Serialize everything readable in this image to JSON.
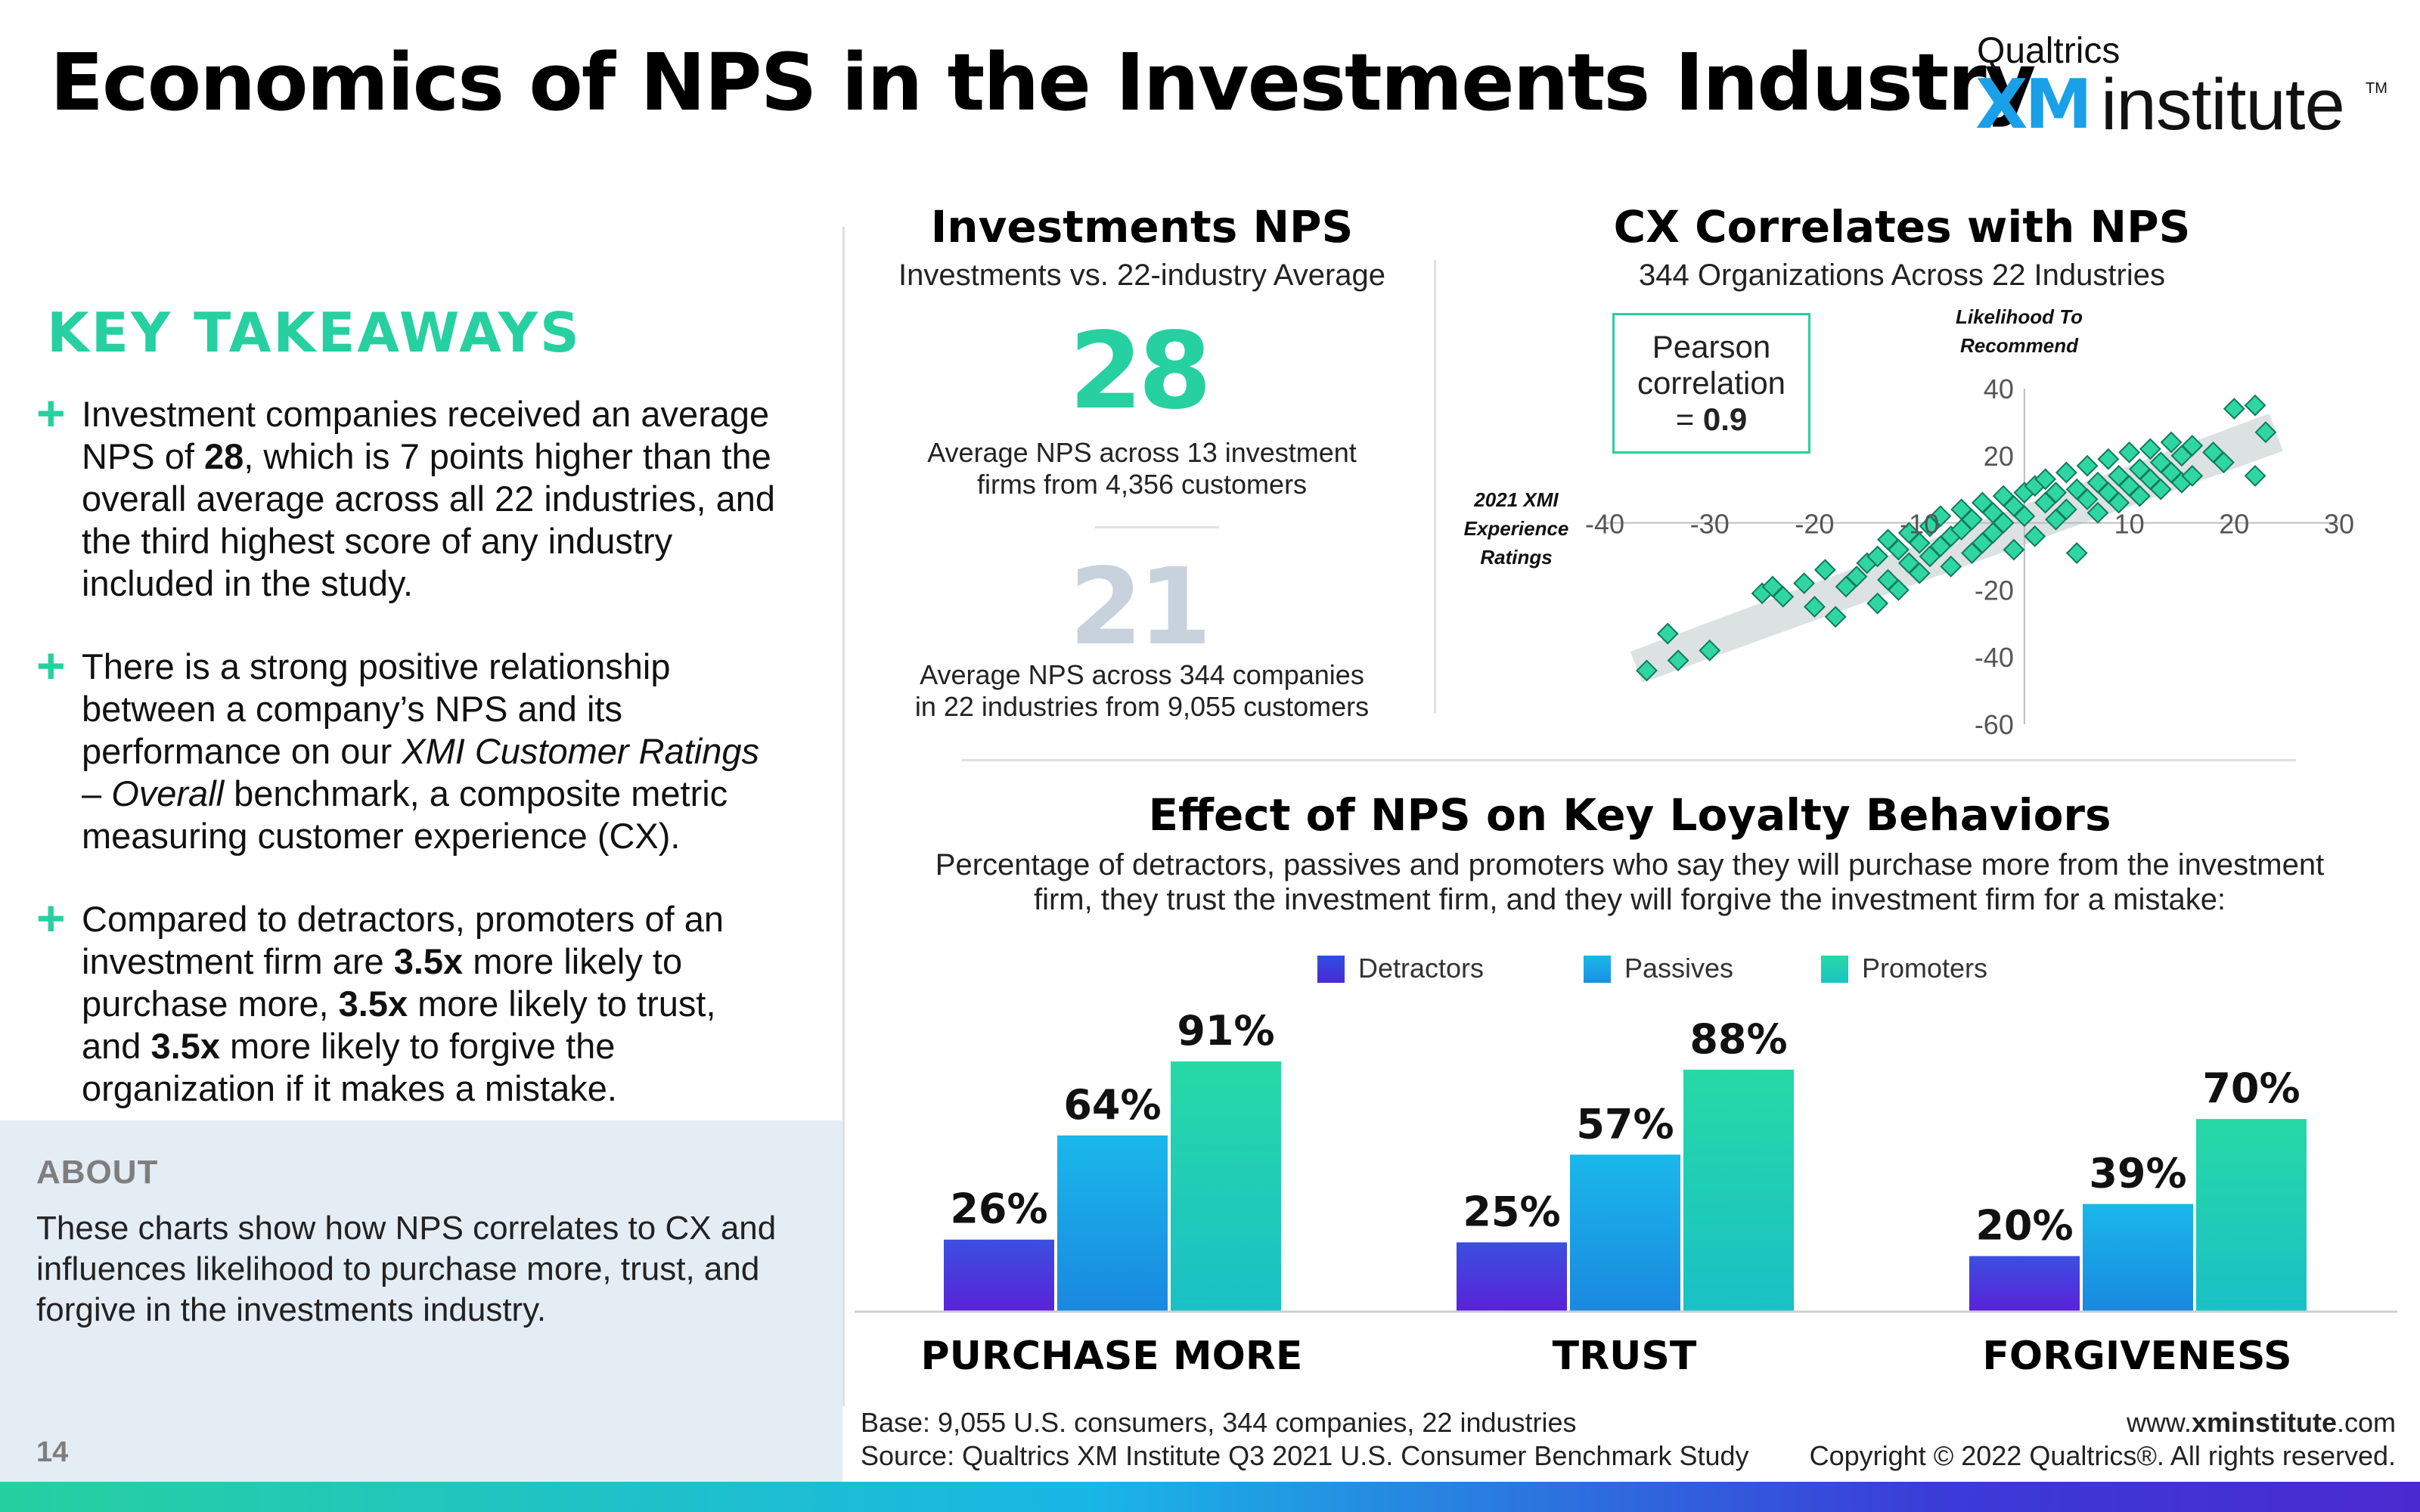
{
  "header": {
    "title": "Economics of NPS in the Investments Industry",
    "logo": {
      "small": "Qualtrics",
      "xm": "XM",
      "institute": "institute",
      "tm": "TM"
    }
  },
  "takeaways": {
    "heading": "KEY TAKEAWAYS",
    "items": [
      {
        "lines": [
          "Investment companies received an average",
          "NPS of 28, which is 7 points higher than the",
          "overall average across all 22 industries, and",
          "the third highest score of any industry",
          "included in the study."
        ]
      },
      {
        "lines": [
          "There is a strong positive relationship",
          "between a company’s NPS and its",
          "performance on our XMI Customer Ratings",
          "– Overall benchmark, a composite metric",
          "measuring customer experience (CX)."
        ]
      },
      {
        "lines": [
          "Compared to detractors, promoters of an",
          "investment firm are 3.5x more likely to",
          "purchase more, 3.5x more likely to trust,",
          "and 3.5x more likely to forgive the",
          "organization if it makes a mistake."
        ]
      }
    ]
  },
  "about": {
    "title": "ABOUT",
    "text": "These charts show how NPS correlates to CX and influences likelihood to purchase more, trust, and forgive in the investments industry."
  },
  "page_number": "14",
  "nps_panel": {
    "title": "Investments NPS",
    "subtitle": "Investments vs. 22-industry Average",
    "main_value": "28",
    "main_caption_1": "Average NPS across 13 investment",
    "main_caption_2": "firms from 4,356 customers",
    "avg_value": "21",
    "avg_caption_1": "Average NPS across 344 companies",
    "avg_caption_2": "in 22 industries from 9,055 customers"
  },
  "cx_panel": {
    "title": "CX Correlates with NPS",
    "subtitle": "344 Organizations Across 22 Industries",
    "pearson_1": "Pearson",
    "pearson_2": "correlation",
    "pearson_eq": "= ",
    "pearson_value": "0.9",
    "y_axis_title_1": "Likelihood To",
    "y_axis_title_2": "Recommend",
    "x_axis_title_1": "2021 XMI",
    "x_axis_title_2": "Experience",
    "x_axis_title_3": "Ratings"
  },
  "loyalty": {
    "title": "Effect of NPS on Key Loyalty Behaviors",
    "subtitle_1": "Percentage of detractors, passives and promoters who say they will purchase more from the investment",
    "subtitle_2": "firm, they trust the investment firm, and they will forgive the investment firm for a mistake:",
    "legend": [
      "Detractors",
      "Passives",
      "Promoters"
    ],
    "groups": [
      "PURCHASE MORE",
      "TRUST",
      "FORGIVENESS"
    ]
  },
  "chart_data": [
    {
      "type": "scatter",
      "title": "CX Correlates with NPS",
      "xlabel": "2021 XMI Experience Ratings",
      "ylabel": "Likelihood To Recommend",
      "xlim": [
        -40,
        30
      ],
      "ylim": [
        -60,
        40
      ],
      "x_ticks": [
        -40,
        -30,
        -20,
        -10,
        0,
        10,
        20,
        30
      ],
      "y_ticks": [
        40,
        20,
        0,
        -20,
        -40,
        -60
      ],
      "grid": false,
      "series": [
        {
          "points": [
            [
              -36,
              -44
            ],
            [
              -34,
              -33
            ],
            [
              -33,
              -41
            ],
            [
              -30,
              -38
            ],
            [
              -25,
              -21
            ],
            [
              -24,
              -19
            ],
            [
              -23,
              -22
            ],
            [
              -21,
              -18
            ],
            [
              -20,
              -25
            ],
            [
              -19,
              -14
            ],
            [
              -18,
              -28
            ],
            [
              -17,
              -19
            ],
            [
              -16,
              -16
            ],
            [
              -15,
              -12
            ],
            [
              -14,
              -10
            ],
            [
              -14,
              -24
            ],
            [
              -13,
              -5
            ],
            [
              -13,
              -17
            ],
            [
              -12,
              -8
            ],
            [
              -12,
              -20
            ],
            [
              -11,
              -3
            ],
            [
              -11,
              -12
            ],
            [
              -10,
              -6
            ],
            [
              -10,
              -15
            ],
            [
              -9,
              -1
            ],
            [
              -9,
              -10
            ],
            [
              -8,
              2
            ],
            [
              -8,
              -7
            ],
            [
              -7,
              -4
            ],
            [
              -7,
              -13
            ],
            [
              -6,
              4
            ],
            [
              -6,
              -2
            ],
            [
              -5,
              -9
            ],
            [
              -5,
              1
            ],
            [
              -4,
              6
            ],
            [
              -4,
              -6
            ],
            [
              -3,
              3
            ],
            [
              -3,
              -3
            ],
            [
              -2,
              8
            ],
            [
              -2,
              0
            ],
            [
              -1,
              5
            ],
            [
              -1,
              -8
            ],
            [
              0,
              9
            ],
            [
              0,
              2
            ],
            [
              1,
              11
            ],
            [
              1,
              -4
            ],
            [
              2,
              6
            ],
            [
              2,
              13
            ],
            [
              3,
              1
            ],
            [
              3,
              9
            ],
            [
              4,
              15
            ],
            [
              4,
              4
            ],
            [
              5,
              10
            ],
            [
              5,
              -9
            ],
            [
              6,
              17
            ],
            [
              6,
              7
            ],
            [
              7,
              12
            ],
            [
              7,
              3
            ],
            [
              8,
              19
            ],
            [
              8,
              9
            ],
            [
              9,
              14
            ],
            [
              9,
              6
            ],
            [
              10,
              21
            ],
            [
              10,
              11
            ],
            [
              11,
              16
            ],
            [
              11,
              8
            ],
            [
              12,
              22
            ],
            [
              12,
              13
            ],
            [
              13,
              18
            ],
            [
              13,
              10
            ],
            [
              14,
              24
            ],
            [
              14,
              15
            ],
            [
              15,
              20
            ],
            [
              15,
              12
            ],
            [
              16,
              23
            ],
            [
              16,
              14
            ],
            [
              18,
              21
            ],
            [
              19,
              18
            ],
            [
              20,
              34
            ],
            [
              22,
              35
            ],
            [
              23,
              27
            ],
            [
              22,
              14
            ]
          ]
        }
      ],
      "trend_band": {
        "from": [
          -37,
          -43
        ],
        "to": [
          24,
          27
        ]
      }
    },
    {
      "type": "bar",
      "categories": [
        "PURCHASE MORE",
        "TRUST",
        "FORGIVENESS"
      ],
      "series": [
        {
          "name": "Detractors",
          "values": [
            26,
            25,
            20
          ]
        },
        {
          "name": "Passives",
          "values": [
            64,
            57,
            39
          ]
        },
        {
          "name": "Promoters",
          "values": [
            91,
            88,
            70
          ]
        }
      ],
      "value_suffix": "%",
      "colors": {
        "Detractors": "#4a2ad8",
        "Passives": "#18aee8",
        "Promoters": "#27d9a6"
      }
    }
  ],
  "footer": {
    "base": "Base: 9,055 U.S. consumers, 344 companies, 22 industries",
    "source": "Source: Qualtrics XM Institute Q3 2021 U.S. Consumer Benchmark Study",
    "web_pre": "www.",
    "web_bold": "xminstitute",
    "web_post": ".com",
    "copyright": "Copyright © 2022 Qualtrics®. All rights reserved."
  }
}
